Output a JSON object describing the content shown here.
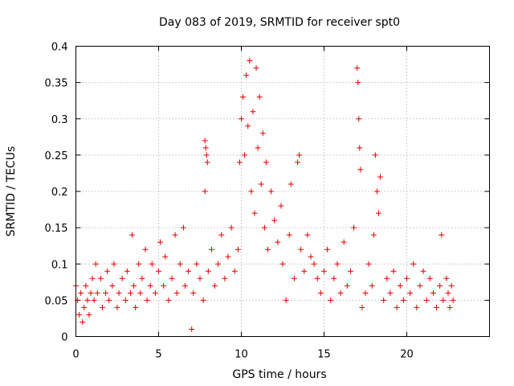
{
  "chart_data": {
    "type": "scatter",
    "title": "Day 083 of 2019, SRMTID for receiver spt0",
    "xlabel": "GPS time / hours",
    "ylabel": "SRMTID / TECUs",
    "xlim": [
      0,
      25
    ],
    "ylim": [
      0,
      0.4
    ],
    "x_ticks": [
      0,
      5,
      10,
      15,
      20
    ],
    "x_tick_labels": [
      "0",
      "5",
      "10",
      "15",
      "20"
    ],
    "y_ticks": [
      0,
      0.05,
      0.1,
      0.15,
      0.2,
      0.25,
      0.3,
      0.35,
      0.4
    ],
    "y_tick_labels": [
      "0",
      "0.05",
      "0.1",
      "0.15",
      "0.2",
      "0.25",
      "0.3",
      "0.35",
      "0.4"
    ],
    "grid": true,
    "marker": "+",
    "marker_color": "#e00000",
    "series": [
      {
        "name": "SRMTID",
        "points": [
          [
            0.0,
            0.07
          ],
          [
            0.1,
            0.05
          ],
          [
            0.2,
            0.03
          ],
          [
            0.3,
            0.06
          ],
          [
            0.4,
            0.02
          ],
          [
            0.5,
            0.04
          ],
          [
            0.6,
            0.07
          ],
          [
            0.7,
            0.05
          ],
          [
            0.8,
            0.03
          ],
          [
            0.9,
            0.06
          ],
          [
            1.0,
            0.08
          ],
          [
            1.1,
            0.05
          ],
          [
            1.2,
            0.1
          ],
          [
            1.3,
            0.06
          ],
          [
            1.5,
            0.08
          ],
          [
            1.6,
            0.04
          ],
          [
            1.8,
            0.06
          ],
          [
            1.9,
            0.09
          ],
          [
            2.0,
            0.05
          ],
          [
            2.2,
            0.07
          ],
          [
            2.3,
            0.1
          ],
          [
            2.5,
            0.04
          ],
          [
            2.6,
            0.06
          ],
          [
            2.8,
            0.08
          ],
          [
            3.0,
            0.05
          ],
          [
            3.1,
            0.09
          ],
          [
            3.3,
            0.06
          ],
          [
            3.4,
            0.14
          ],
          [
            3.5,
            0.07
          ],
          [
            3.6,
            0.04
          ],
          [
            3.8,
            0.1
          ],
          [
            3.9,
            0.06
          ],
          [
            4.0,
            0.08
          ],
          [
            4.2,
            0.12
          ],
          [
            4.3,
            0.05
          ],
          [
            4.5,
            0.07
          ],
          [
            4.6,
            0.1
          ],
          [
            4.8,
            0.06
          ],
          [
            5.0,
            0.09
          ],
          [
            5.1,
            0.13
          ],
          [
            5.3,
            0.07
          ],
          [
            5.4,
            0.11
          ],
          [
            5.6,
            0.05
          ],
          [
            5.8,
            0.08
          ],
          [
            6.0,
            0.14
          ],
          [
            6.1,
            0.06
          ],
          [
            6.3,
            0.1
          ],
          [
            6.5,
            0.15
          ],
          [
            6.6,
            0.07
          ],
          [
            6.8,
            0.09
          ],
          [
            7.0,
            0.01
          ],
          [
            7.1,
            0.06
          ],
          [
            7.3,
            0.1
          ],
          [
            7.5,
            0.08
          ],
          [
            7.7,
            0.05
          ],
          [
            7.8,
            0.27
          ],
          [
            7.85,
            0.26
          ],
          [
            7.9,
            0.25
          ],
          [
            7.95,
            0.24
          ],
          [
            7.8,
            0.2
          ],
          [
            8.0,
            0.09
          ],
          [
            8.2,
            0.12
          ],
          [
            8.4,
            0.07
          ],
          [
            8.6,
            0.1
          ],
          [
            8.8,
            0.14
          ],
          [
            9.0,
            0.08
          ],
          [
            9.2,
            0.11
          ],
          [
            9.4,
            0.15
          ],
          [
            9.6,
            0.09
          ],
          [
            9.8,
            0.12
          ],
          [
            9.9,
            0.24
          ],
          [
            10.0,
            0.3
          ],
          [
            10.1,
            0.33
          ],
          [
            10.2,
            0.25
          ],
          [
            10.3,
            0.36
          ],
          [
            10.4,
            0.29
          ],
          [
            10.5,
            0.38
          ],
          [
            10.6,
            0.2
          ],
          [
            10.7,
            0.31
          ],
          [
            10.8,
            0.17
          ],
          [
            10.9,
            0.37
          ],
          [
            11.0,
            0.26
          ],
          [
            11.1,
            0.33
          ],
          [
            11.2,
            0.21
          ],
          [
            11.3,
            0.28
          ],
          [
            11.4,
            0.15
          ],
          [
            11.5,
            0.24
          ],
          [
            11.6,
            0.12
          ],
          [
            11.8,
            0.2
          ],
          [
            12.0,
            0.16
          ],
          [
            12.2,
            0.13
          ],
          [
            12.4,
            0.18
          ],
          [
            12.5,
            0.1
          ],
          [
            12.7,
            0.05
          ],
          [
            12.9,
            0.14
          ],
          [
            13.0,
            0.21
          ],
          [
            13.2,
            0.08
          ],
          [
            13.4,
            0.24
          ],
          [
            13.5,
            0.25
          ],
          [
            13.6,
            0.12
          ],
          [
            13.8,
            0.09
          ],
          [
            14.0,
            0.14
          ],
          [
            14.2,
            0.11
          ],
          [
            14.4,
            0.1
          ],
          [
            14.6,
            0.08
          ],
          [
            14.8,
            0.06
          ],
          [
            15.0,
            0.09
          ],
          [
            15.2,
            0.12
          ],
          [
            15.4,
            0.05
          ],
          [
            15.6,
            0.08
          ],
          [
            15.8,
            0.1
          ],
          [
            16.0,
            0.06
          ],
          [
            16.2,
            0.13
          ],
          [
            16.4,
            0.07
          ],
          [
            16.6,
            0.09
          ],
          [
            16.8,
            0.15
          ],
          [
            17.0,
            0.37
          ],
          [
            17.05,
            0.35
          ],
          [
            17.1,
            0.3
          ],
          [
            17.15,
            0.26
          ],
          [
            17.2,
            0.23
          ],
          [
            17.3,
            0.04
          ],
          [
            17.5,
            0.06
          ],
          [
            17.7,
            0.1
          ],
          [
            17.9,
            0.07
          ],
          [
            18.0,
            0.14
          ],
          [
            18.1,
            0.25
          ],
          [
            18.2,
            0.2
          ],
          [
            18.3,
            0.17
          ],
          [
            18.4,
            0.22
          ],
          [
            18.6,
            0.05
          ],
          [
            18.8,
            0.08
          ],
          [
            19.0,
            0.06
          ],
          [
            19.2,
            0.09
          ],
          [
            19.4,
            0.04
          ],
          [
            19.6,
            0.07
          ],
          [
            19.8,
            0.05
          ],
          [
            20.0,
            0.08
          ],
          [
            20.2,
            0.06
          ],
          [
            20.4,
            0.1
          ],
          [
            20.6,
            0.04
          ],
          [
            20.8,
            0.07
          ],
          [
            21.0,
            0.09
          ],
          [
            21.2,
            0.05
          ],
          [
            21.4,
            0.08
          ],
          [
            21.6,
            0.06
          ],
          [
            21.8,
            0.04
          ],
          [
            22.0,
            0.07
          ],
          [
            22.1,
            0.14
          ],
          [
            22.2,
            0.05
          ],
          [
            22.4,
            0.08
          ],
          [
            22.5,
            0.06
          ],
          [
            22.6,
            0.04
          ],
          [
            22.7,
            0.07
          ],
          [
            22.8,
            0.05
          ]
        ]
      }
    ]
  }
}
